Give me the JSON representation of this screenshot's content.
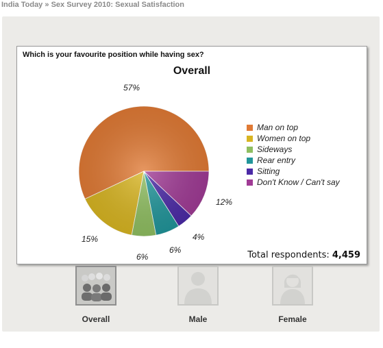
{
  "breadcrumb": {
    "site": "India Today",
    "separator": "»",
    "section": "Sex Survey 2010: Sexual Satisfaction"
  },
  "card": {
    "question": "Which is your favourite position while having sex?",
    "respondents_label": "Total respondents:",
    "respondents_value": "4,459"
  },
  "chart_data": {
    "type": "pie",
    "title": "Overall",
    "categories": [
      "Man on top",
      "Women on top",
      "Sideways",
      "Rear entry",
      "Sitting",
      "Don't Know / Can't say"
    ],
    "values": [
      57,
      15,
      6,
      6,
      4,
      12
    ],
    "labels": [
      "57%",
      "15%",
      "6%",
      "6%",
      "4%",
      "12%"
    ],
    "colors": [
      "#e07a35",
      "#d8b522",
      "#8fbe61",
      "#21959a",
      "#4b2aa6",
      "#a03b95"
    ],
    "legend_position": "right"
  },
  "tabs": [
    {
      "label": "Overall",
      "icon": "group-icon",
      "active": true
    },
    {
      "label": "Male",
      "icon": "male-silhouette-icon",
      "active": false
    },
    {
      "label": "Female",
      "icon": "female-silhouette-icon",
      "active": false
    }
  ]
}
